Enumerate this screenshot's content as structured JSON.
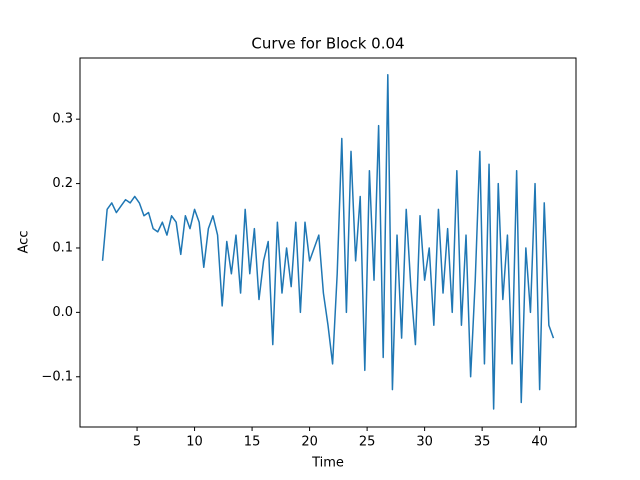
{
  "chart_data": {
    "type": "line",
    "title": "Curve for Block 0.04",
    "x_label": "Time",
    "y_label": "Acc",
    "x": [
      2.0,
      2.4,
      2.8,
      3.2,
      3.6,
      4.0,
      4.4,
      4.8,
      5.2,
      5.6,
      6.0,
      6.4,
      6.8,
      7.2,
      7.6,
      8.0,
      8.4,
      8.8,
      9.2,
      9.6,
      10.0,
      10.4,
      10.8,
      11.2,
      11.6,
      12.0,
      12.4,
      12.8,
      13.2,
      13.6,
      14.0,
      14.4,
      14.8,
      15.2,
      15.6,
      16.0,
      16.4,
      16.8,
      17.2,
      17.6,
      18.0,
      18.4,
      18.8,
      19.2,
      19.6,
      20.0,
      20.4,
      20.8,
      21.2,
      21.6,
      22.0,
      22.4,
      22.8,
      23.2,
      23.6,
      24.0,
      24.4,
      24.8,
      25.2,
      25.6,
      26.0,
      26.4,
      26.8,
      27.2,
      27.6,
      28.0,
      28.4,
      28.8,
      29.2,
      29.6,
      30.0,
      30.4,
      30.8,
      31.2,
      31.6,
      32.0,
      32.4,
      32.8,
      33.2,
      33.6,
      34.0,
      34.4,
      34.8,
      35.2,
      35.6,
      36.0,
      36.4,
      36.8,
      37.2,
      37.6,
      38.0,
      38.4,
      38.8,
      39.2,
      39.6,
      40.0,
      40.4,
      40.8,
      41.2
    ],
    "series": [
      {
        "color": "#1f77b4",
        "values": [
          0.08,
          0.16,
          0.17,
          0.155,
          0.165,
          0.175,
          0.17,
          0.18,
          0.17,
          0.15,
          0.155,
          0.13,
          0.125,
          0.14,
          0.12,
          0.15,
          0.14,
          0.09,
          0.15,
          0.13,
          0.16,
          0.14,
          0.07,
          0.13,
          0.15,
          0.12,
          0.01,
          0.11,
          0.06,
          0.12,
          0.03,
          0.16,
          0.06,
          0.13,
          0.02,
          0.08,
          0.11,
          -0.05,
          0.14,
          0.03,
          0.1,
          0.04,
          0.14,
          0.0,
          0.14,
          0.08,
          0.1,
          0.12,
          0.03,
          -0.02,
          -0.08,
          0.06,
          0.27,
          0.0,
          0.25,
          0.08,
          0.18,
          -0.09,
          0.22,
          0.05,
          0.29,
          -0.07,
          0.369,
          -0.12,
          0.12,
          -0.04,
          0.16,
          0.04,
          -0.05,
          0.15,
          0.05,
          0.1,
          -0.02,
          0.16,
          0.03,
          0.13,
          0.0,
          0.22,
          -0.02,
          0.12,
          -0.1,
          0.05,
          0.25,
          -0.08,
          0.23,
          -0.15,
          0.2,
          0.02,
          0.12,
          -0.08,
          0.22,
          -0.14,
          0.1,
          0.0,
          0.2,
          -0.12,
          0.17,
          -0.02,
          -0.04
        ]
      }
    ],
    "xlim": [
      0.04,
      43.16
    ],
    "ylim": [
      -0.178,
      0.395
    ],
    "xticks": [
      5,
      10,
      15,
      20,
      25,
      30,
      35,
      40
    ],
    "yticks": [
      {
        "value": -0.1,
        "label": "−0.1"
      },
      {
        "value": 0.0,
        "label": "0.0"
      },
      0.1,
      0.2,
      0.3
    ],
    "grid": false
  }
}
